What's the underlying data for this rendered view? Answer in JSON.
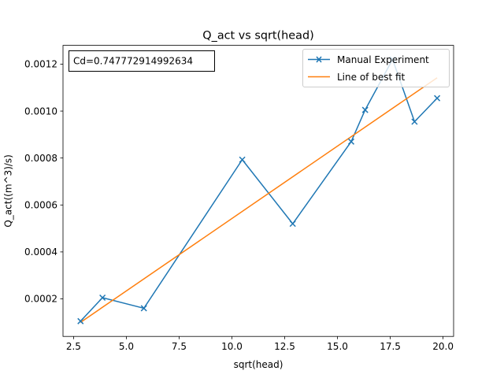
{
  "chart_data": {
    "type": "line",
    "title": "Q_act vs sqrt(head)",
    "xlabel": "sqrt(head)",
    "ylabel": "Q_act((m^3)/s)",
    "xlim": [
      2.0,
      20.5
    ],
    "ylim": [
      4e-05,
      0.00128
    ],
    "xticks": [
      2.5,
      5.0,
      7.5,
      10.0,
      12.5,
      15.0,
      17.5,
      20.0
    ],
    "xtick_labels": [
      "2.5",
      "5.0",
      "7.5",
      "10.0",
      "12.5",
      "15.0",
      "17.5",
      "20.0"
    ],
    "yticks": [
      0.0002,
      0.0004,
      0.0006,
      0.0008,
      0.001,
      0.0012
    ],
    "ytick_labels": [
      "0.0002",
      "0.0004",
      "0.0006",
      "0.0008",
      "0.0010",
      "0.0012"
    ],
    "grid": false,
    "legend_position": "top-right",
    "annotation": "Cd=0.747772914992634",
    "series": [
      {
        "name": "Manual Experiment",
        "color": "#1f77b4",
        "marker": "x",
        "x": [
          2.83,
          3.87,
          5.83,
          10.49,
          12.88,
          15.65,
          16.31,
          17.61,
          18.65,
          19.72
        ],
        "y": [
          0.000105,
          0.000205,
          0.00016,
          0.000793,
          0.00052,
          0.00087,
          0.001005,
          0.00122,
          0.000955,
          0.001055
        ]
      },
      {
        "name": "Line of best fit",
        "color": "#ff7f0e",
        "marker": "none",
        "x": [
          2.83,
          19.72
        ],
        "y": [
          0.0001,
          0.001142
        ]
      }
    ]
  }
}
